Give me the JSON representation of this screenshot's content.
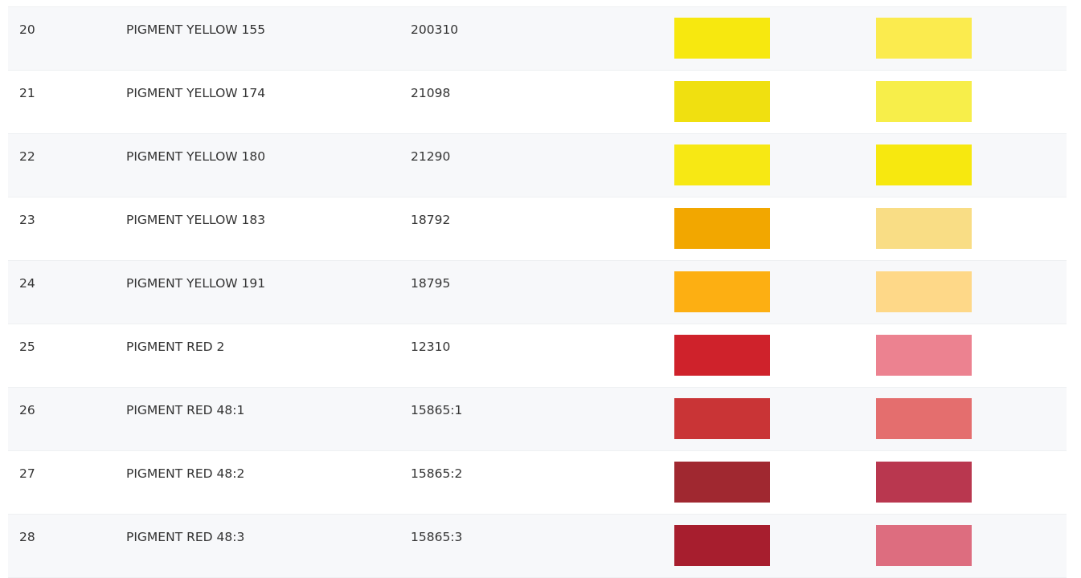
{
  "rows": [
    {
      "no": "20",
      "name": "PIGMENT YELLOW 155",
      "ci": "200310",
      "color_full": "#f7e80f",
      "color_tint": "#fbeb4e"
    },
    {
      "no": "21",
      "name": "PIGMENT YELLOW 174",
      "ci": "21098",
      "color_full": "#f0e010",
      "color_tint": "#f7ee4a"
    },
    {
      "no": "22",
      "name": "PIGMENT YELLOW 180",
      "ci": "21290",
      "color_full": "#f7e814",
      "color_tint": "#f7e80f"
    },
    {
      "no": "23",
      "name": "PIGMENT YELLOW 183",
      "ci": "18792",
      "color_full": "#f2a700",
      "color_tint": "#f9dd85"
    },
    {
      "no": "24",
      "name": "PIGMENT YELLOW 191",
      "ci": "18795",
      "color_full": "#fdaf12",
      "color_tint": "#fed888"
    },
    {
      "no": "25",
      "name": "PIGMENT RED 2",
      "ci": "12310",
      "color_full": "#cf222b",
      "color_tint": "#ec8290"
    },
    {
      "no": "26",
      "name": "PIGMENT RED 48:1",
      "ci": "15865:1",
      "color_full": "#c93436",
      "color_tint": "#e46e6e"
    },
    {
      "no": "27",
      "name": "PIGMENT RED 48:2",
      "ci": "15865:2",
      "color_full": "#a02830",
      "color_tint": "#b9374f"
    },
    {
      "no": "28",
      "name": "PIGMENT RED 48:3",
      "ci": "15865:3",
      "color_full": "#a71e2e",
      "color_tint": "#dd6d7f"
    }
  ]
}
